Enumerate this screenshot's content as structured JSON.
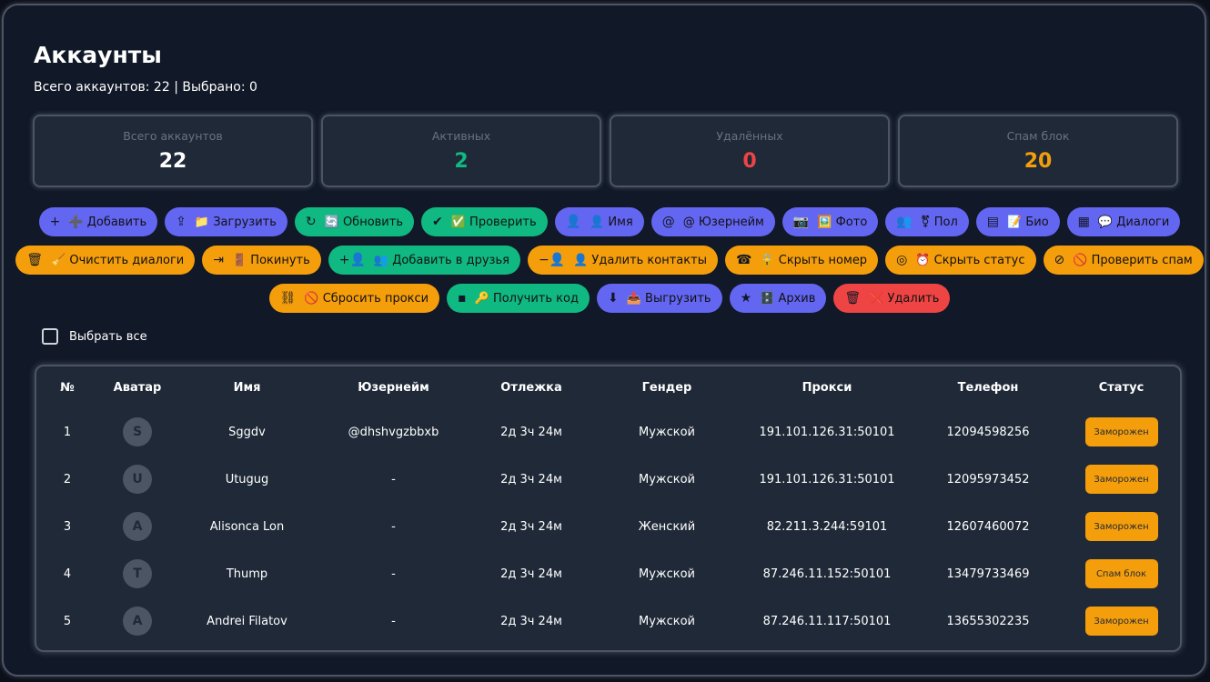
{
  "title": "Аккаунты",
  "subtitle": "Всего аккаунтов: 22 | Выбрано: 0",
  "stats": [
    {
      "label": "Всего аккаунтов",
      "value": "22",
      "color": "#ffffff"
    },
    {
      "label": "Активных",
      "value": "2",
      "color": "#10b981"
    },
    {
      "label": "Удалённых",
      "value": "0",
      "color": "#ef4444"
    },
    {
      "label": "Спам блок",
      "value": "20",
      "color": "#f59e0b"
    }
  ],
  "colors": {
    "indigo": "#6366f1",
    "green": "#10b981",
    "orange": "#f59e0b",
    "red": "#ef4444"
  },
  "button_rows": [
    [
      {
        "icon": "+",
        "name": "add",
        "label": "➕ Добавить",
        "c": "indigo"
      },
      {
        "icon": "⇪",
        "name": "upload-file",
        "label": "📁 Загрузить",
        "c": "indigo"
      },
      {
        "icon": "↻",
        "name": "refresh",
        "label": "🔄 Обновить",
        "c": "green"
      },
      {
        "icon": "✔",
        "name": "check",
        "label": "✅ Проверить",
        "c": "green"
      },
      {
        "icon": "👤",
        "name": "person",
        "label": "👤 Имя",
        "c": "indigo"
      },
      {
        "icon": "@",
        "name": "at",
        "label": "@ Юзернейм",
        "c": "indigo"
      },
      {
        "icon": "📷",
        "name": "camera",
        "label": "🖼️ Фото",
        "c": "indigo"
      },
      {
        "icon": "👥",
        "name": "people",
        "label": "⚧ Пол",
        "c": "indigo"
      },
      {
        "icon": "▤",
        "name": "document",
        "label": "📝 Био",
        "c": "indigo"
      },
      {
        "icon": "▦",
        "name": "chat",
        "label": "💬 Диалоги",
        "c": "indigo"
      }
    ],
    [
      {
        "icon": "🗑",
        "name": "clear",
        "label": "🧹 Очистить диалоги",
        "c": "orange"
      },
      {
        "icon": "⇥",
        "name": "leave",
        "label": "🚪 Покинуть",
        "c": "orange"
      },
      {
        "icon": "+👤",
        "name": "add-friend",
        "label": "👥 Добавить в друзья",
        "c": "green"
      },
      {
        "icon": "−👤",
        "name": "remove-contact",
        "label": "👤 Удалить контакты",
        "c": "orange"
      },
      {
        "icon": "☎",
        "name": "phone-lock",
        "label": "🔒 Скрыть номер",
        "c": "orange"
      },
      {
        "icon": "◎",
        "name": "eye-off",
        "label": "⏰ Скрыть статус",
        "c": "orange"
      },
      {
        "icon": "⊘",
        "name": "block",
        "label": "🚫 Проверить спам",
        "c": "orange"
      }
    ],
    [
      {
        "icon": "⛓",
        "name": "link-off",
        "label": "🚫 Сбросить прокси",
        "c": "orange"
      },
      {
        "icon": "▪",
        "name": "sms",
        "label": "🔑 Получить код",
        "c": "green"
      },
      {
        "icon": "⬇",
        "name": "archive-box",
        "label": "📤 Выгрузить",
        "c": "indigo"
      },
      {
        "icon": "★",
        "name": "folder-star",
        "label": "🗄️ Архив",
        "c": "indigo"
      },
      {
        "icon": "🗑",
        "name": "trash",
        "label": "❌ Удалить",
        "c": "red"
      }
    ]
  ],
  "select_all": "Выбрать все",
  "table": {
    "headers": [
      "№",
      "Аватар",
      "Имя",
      "Юзернейм",
      "Отлежка",
      "Гендер",
      "Прокси",
      "Телефон",
      "Статус"
    ],
    "rows": [
      [
        "1",
        "S",
        "Sggdv",
        "@dhshvgzbbxb",
        "2д 3ч 24м",
        "Мужской",
        "191.101.126.31:50101",
        "12094598256",
        "Заморожен"
      ],
      [
        "2",
        "U",
        "Utugug",
        "-",
        "2д 3ч 24м",
        "Мужской",
        "191.101.126.31:50101",
        "12095973452",
        "Заморожен"
      ],
      [
        "3",
        "A",
        "Alisonca Lon",
        "-",
        "2д 3ч 24м",
        "Женский",
        "82.211.3.244:59101",
        "12607460072",
        "Заморожен"
      ],
      [
        "4",
        "T",
        "Thump",
        "-",
        "2д 3ч 24м",
        "Мужской",
        "87.246.11.152:50101",
        "13479733469",
        "Спам блок"
      ],
      [
        "5",
        "A",
        "Andrei Filatov",
        "-",
        "2д 3ч 24м",
        "Мужской",
        "87.246.11.117:50101",
        "13655302235",
        "Заморожен"
      ]
    ]
  }
}
